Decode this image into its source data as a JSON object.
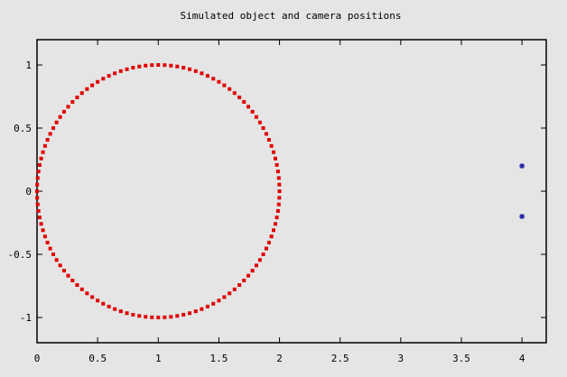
{
  "chart_data": {
    "type": "scatter",
    "title": "Simulated object and camera positions",
    "xlabel": "",
    "ylabel": "",
    "xlim": [
      0,
      4.2
    ],
    "ylim": [
      -1.2,
      1.2
    ],
    "x_ticks": [
      0,
      0.5,
      1,
      1.5,
      2,
      2.5,
      3,
      3.5,
      4
    ],
    "x_tick_labels": [
      "0",
      "0.5",
      "1",
      "1.5",
      "2",
      "2.5",
      "3",
      "3.5",
      "4"
    ],
    "y_ticks": [
      -1,
      -0.5,
      0,
      0.5,
      1
    ],
    "y_tick_labels": [
      "-1",
      "-0.5",
      "0",
      "0.5",
      "1"
    ],
    "grid": false,
    "legend": "none",
    "series": [
      {
        "marker": "square",
        "color": "#e00000",
        "shape": "circle",
        "center": [
          1,
          0
        ],
        "radius": 1,
        "n_points": 120
      },
      {
        "marker": "asterisk",
        "color": "#1a1aa0",
        "points": [
          [
            4,
            0.2
          ],
          [
            4,
            -0.2
          ]
        ]
      }
    ]
  }
}
